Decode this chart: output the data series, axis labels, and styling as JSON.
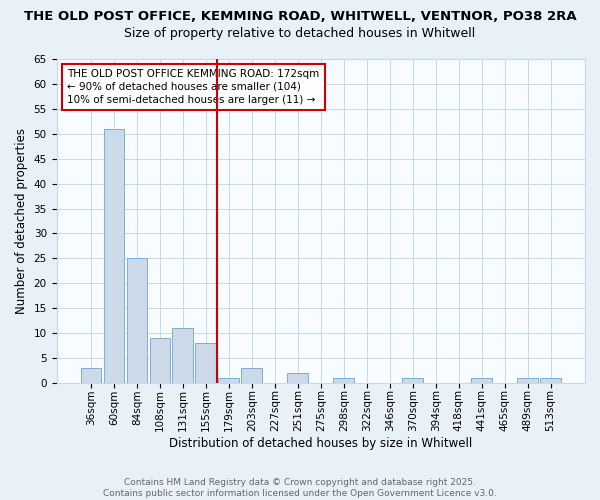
{
  "title_line1": "THE OLD POST OFFICE, KEMMING ROAD, WHITWELL, VENTNOR, PO38 2RA",
  "title_line2": "Size of property relative to detached houses in Whitwell",
  "xlabel": "Distribution of detached houses by size in Whitwell",
  "ylabel": "Number of detached properties",
  "categories": [
    "36sqm",
    "60sqm",
    "84sqm",
    "108sqm",
    "131sqm",
    "155sqm",
    "179sqm",
    "203sqm",
    "227sqm",
    "251sqm",
    "275sqm",
    "298sqm",
    "322sqm",
    "346sqm",
    "370sqm",
    "394sqm",
    "418sqm",
    "441sqm",
    "465sqm",
    "489sqm",
    "513sqm"
  ],
  "values": [
    3,
    51,
    25,
    9,
    11,
    8,
    1,
    3,
    0,
    2,
    0,
    1,
    0,
    0,
    1,
    0,
    0,
    1,
    0,
    1,
    1
  ],
  "bar_color": "#ccd9e8",
  "bar_edge_color": "#7aafd4",
  "vline_x": 5.5,
  "vline_color": "#cc0000",
  "annotation_text": "THE OLD POST OFFICE KEMMING ROAD: 172sqm\n← 90% of detached houses are smaller (104)\n10% of semi-detached houses are larger (11) →",
  "annotation_box_color": "#ffffff",
  "annotation_box_edge": "#cc0000",
  "ylim": [
    0,
    65
  ],
  "yticks": [
    0,
    5,
    10,
    15,
    20,
    25,
    30,
    35,
    40,
    45,
    50,
    55,
    60,
    65
  ],
  "footnote": "Contains HM Land Registry data © Crown copyright and database right 2025.\nContains public sector information licensed under the Open Government Licence v3.0.",
  "bg_color": "#e8f0f8",
  "plot_bg_color": "#f8fbff",
  "grid_color": "#c8d8e8",
  "title_fontsize": 9.5,
  "subtitle_fontsize": 9,
  "axis_label_fontsize": 8.5,
  "tick_fontsize": 7.5,
  "annotation_fontsize": 7.5,
  "footnote_fontsize": 6.5
}
